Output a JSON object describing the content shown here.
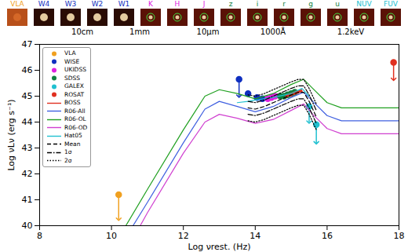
{
  "chart_data": {
    "type": "scatter",
    "x_label": "Log νrest. (Hz)",
    "y_label": "Log νLν (erg s⁻¹)",
    "xlim": [
      8,
      18
    ],
    "xticks": [
      8,
      10,
      12,
      14,
      16,
      18
    ],
    "ylim": [
      40,
      47
    ],
    "yticks": [
      40,
      41,
      42,
      43,
      44,
      45,
      46,
      47
    ],
    "bands": [
      {
        "name": "VLA",
        "color": "#f0a020"
      },
      {
        "name": "W4",
        "color": "#1030c0"
      },
      {
        "name": "W3",
        "color": "#1030c0"
      },
      {
        "name": "W2",
        "color": "#1030c0"
      },
      {
        "name": "W1",
        "color": "#1030c0"
      },
      {
        "name": "K",
        "color": "#e020e0"
      },
      {
        "name": "H",
        "color": "#e020e0"
      },
      {
        "name": "J",
        "color": "#e020e0"
      },
      {
        "name": "z",
        "color": "#108040"
      },
      {
        "name": "i",
        "color": "#108040"
      },
      {
        "name": "r",
        "color": "#108040"
      },
      {
        "name": "g",
        "color": "#108040"
      },
      {
        "name": "u",
        "color": "#108040"
      },
      {
        "name": "NUV",
        "color": "#20c0d0"
      },
      {
        "name": "FUV",
        "color": "#20c0d0"
      }
    ],
    "scale_labels": [
      "10cm",
      "1mm",
      "10μm",
      "1000Å",
      "1.2keV"
    ],
    "series": [
      {
        "name": "VLA",
        "type": "scatter",
        "marker": "circle",
        "color": "#f0a020",
        "x": [
          10.2
        ],
        "values": [
          41.2
        ],
        "arrow_end": [
          40.25
        ]
      },
      {
        "name": "WISE",
        "type": "scatter",
        "marker": "circle",
        "color": "#1030c0",
        "x": [
          13.55,
          13.8,
          14.05,
          14.2
        ],
        "values": [
          45.65,
          45.1,
          44.95,
          44.9
        ],
        "arrow_end": [
          45.0,
          null,
          null,
          null
        ]
      },
      {
        "name": "UKIDSS",
        "type": "scatter",
        "marker": "circle",
        "color": "#e020e0",
        "x": [
          14.35,
          14.45,
          14.55
        ],
        "values": [
          44.9,
          44.95,
          45.0
        ],
        "arrow_end": [
          null,
          null,
          null
        ]
      },
      {
        "name": "SDSS",
        "type": "scatter",
        "marker": "circle",
        "color": "#108040",
        "x": [
          14.7,
          14.8,
          14.9,
          15.0,
          15.1
        ],
        "values": [
          45.0,
          45.0,
          45.05,
          45.1,
          45.15
        ],
        "arrow_end": [
          null,
          null,
          null,
          null,
          null
        ]
      },
      {
        "name": "GALEX",
        "type": "scatter",
        "marker": "circle",
        "color": "#20c0d0",
        "x": [
          15.5,
          15.7
        ],
        "values": [
          44.6,
          43.9
        ],
        "arrow_end": [
          44.0,
          43.2
        ]
      },
      {
        "name": "ROSAT",
        "type": "scatter",
        "marker": "circle",
        "color": "#e03020",
        "x": [
          17.85
        ],
        "values": [
          46.3
        ],
        "arrow_end": [
          45.65
        ]
      },
      {
        "name": "BOSS",
        "type": "line",
        "line_style": "solid",
        "color": "#e03020",
        "x": [
          14.85,
          14.875,
          14.9,
          14.925,
          14.95,
          14.975,
          15.0,
          15.025,
          15.05,
          15.075,
          15.1,
          15.125,
          15.15,
          15.175,
          15.2,
          15.225,
          15.25,
          15.275,
          15.3
        ],
        "values": [
          44.95,
          45.05,
          44.98,
          45.08,
          45.02,
          45.1,
          45.0,
          45.12,
          45.06,
          45.15,
          45.08,
          45.18,
          45.1,
          45.2,
          45.12,
          45.22,
          45.15,
          45.25,
          45.18
        ]
      },
      {
        "name": "R06-All",
        "type": "line",
        "line_style": "solid",
        "color": "#4060e0",
        "x": [
          10.6,
          11,
          12,
          12.6,
          13,
          13.5,
          14,
          14.5,
          15,
          15.35,
          15.6,
          16,
          16.4,
          18
        ],
        "values": [
          40.0,
          40.9,
          43.2,
          44.5,
          44.8,
          44.6,
          44.4,
          44.6,
          44.95,
          45.15,
          44.8,
          44.25,
          44.05,
          44.05
        ]
      },
      {
        "name": "R06-OL",
        "type": "line",
        "line_style": "solid",
        "color": "#20a020",
        "x": [
          10.4,
          11,
          12,
          12.6,
          13,
          13.5,
          14,
          14.5,
          15,
          15.35,
          15.6,
          16,
          16.4,
          18
        ],
        "values": [
          40.0,
          41.4,
          43.7,
          45.0,
          45.25,
          45.1,
          44.9,
          45.1,
          45.45,
          45.65,
          45.3,
          44.75,
          44.55,
          44.55
        ]
      },
      {
        "name": "R06-OD",
        "type": "line",
        "line_style": "solid",
        "color": "#d040d0",
        "x": [
          10.8,
          11,
          12,
          12.6,
          13,
          13.5,
          14,
          14.5,
          15,
          15.35,
          15.6,
          16,
          16.4,
          18
        ],
        "values": [
          40.0,
          40.5,
          42.8,
          44.0,
          44.3,
          44.15,
          43.95,
          44.1,
          44.45,
          44.7,
          44.3,
          43.75,
          43.55,
          43.55
        ]
      },
      {
        "name": "Hat05",
        "type": "line",
        "line_style": "solid",
        "color": "#20c0d0",
        "x": [
          13.5,
          13.8,
          14,
          14.5,
          15,
          15.3,
          15.5
        ],
        "values": [
          44.75,
          44.8,
          44.85,
          44.95,
          45.1,
          45.3,
          45.0
        ]
      },
      {
        "name": "Mean",
        "type": "line",
        "line_style": "dashed",
        "color": "#000000",
        "x": [
          13.8,
          14,
          14.25,
          14.5,
          14.75,
          15,
          15.2,
          15.35,
          15.5,
          15.7
        ],
        "values": [
          44.55,
          44.5,
          44.6,
          44.75,
          44.9,
          45.05,
          45.15,
          45.15,
          44.8,
          44.2
        ]
      },
      {
        "name": "1σ",
        "type": "line",
        "line_style": "dashdot",
        "color": "#000000",
        "x": [
          13.8,
          14,
          14.25,
          14.5,
          14.75,
          15,
          15.2,
          15.35,
          15.5,
          15.7
        ],
        "upper": [
          44.8,
          44.75,
          44.85,
          45.0,
          45.15,
          45.3,
          45.4,
          45.4,
          45.05,
          44.45
        ],
        "lower": [
          44.3,
          44.25,
          44.35,
          44.5,
          44.65,
          44.8,
          44.9,
          44.9,
          44.55,
          43.95
        ]
      },
      {
        "name": "2σ",
        "type": "line",
        "line_style": "dotted",
        "color": "#000000",
        "x": [
          13.8,
          14,
          14.25,
          14.5,
          14.75,
          15,
          15.2,
          15.35,
          15.5,
          15.7
        ],
        "upper": [
          45.05,
          45.0,
          45.1,
          45.25,
          45.4,
          45.55,
          45.65,
          45.65,
          45.3,
          44.7
        ],
        "lower": [
          44.05,
          44.0,
          44.1,
          44.25,
          44.4,
          44.55,
          44.65,
          44.65,
          44.3,
          43.7
        ]
      }
    ]
  }
}
